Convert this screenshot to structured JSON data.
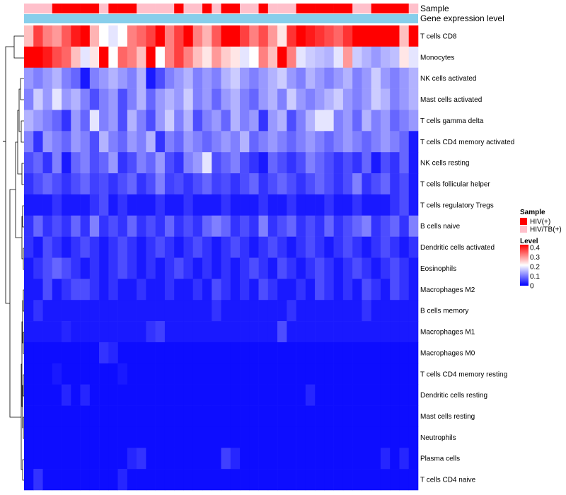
{
  "chart_data": {
    "type": "heatmap",
    "annotation_rows": [
      "Sample",
      "Gene expression level"
    ],
    "rows": [
      "T cells CD8",
      "Monocytes",
      "NK cells activated",
      "Mast cells activated",
      "T cells gamma delta",
      "T cells CD4 memory activated",
      "NK cells resting",
      "T cells follicular helper",
      "T cells regulatory  Tregs",
      "B cells naive",
      "Dendritic cells activated",
      "Eosinophils",
      "Macrophages M2",
      "B cells memory",
      "Macrophages M1",
      "Macrophages M0",
      "T cells CD4 memory resting",
      "Dendritic cells resting",
      "Mast cells resting",
      "Neutrophils",
      "Plasma cells",
      "T cells CD4 naive"
    ],
    "sample_groups": [
      "HIV/TB(+)",
      "HIV/TB(+)",
      "HIV/TB(+)",
      "HIV(+)",
      "HIV(+)",
      "HIV(+)",
      "HIV(+)",
      "HIV(+)",
      "HIV/TB(+)",
      "HIV(+)",
      "HIV(+)",
      "HIV(+)",
      "HIV/TB(+)",
      "HIV/TB(+)",
      "HIV/TB(+)",
      "HIV/TB(+)",
      "HIV(+)",
      "HIV/TB(+)",
      "HIV/TB(+)",
      "HIV(+)",
      "HIV/TB(+)",
      "HIV(+)",
      "HIV(+)",
      "HIV/TB(+)",
      "HIV/TB(+)",
      "HIV(+)",
      "HIV/TB(+)",
      "HIV/TB(+)",
      "HIV/TB(+)",
      "HIV(+)",
      "HIV(+)",
      "HIV(+)",
      "HIV(+)",
      "HIV(+)",
      "HIV(+)",
      "HIV/TB(+)",
      "HIV/TB(+)",
      "HIV(+)",
      "HIV(+)",
      "HIV(+)",
      "HIV(+)",
      "HIV/TB(+)"
    ],
    "values": [
      [
        0.25,
        0.35,
        0.3,
        0.28,
        0.33,
        0.38,
        0.4,
        0.26,
        0.2,
        0.18,
        0.2,
        0.3,
        0.32,
        0.35,
        0.4,
        0.3,
        0.35,
        0.42,
        0.3,
        0.26,
        0.33,
        0.4,
        0.42,
        0.35,
        0.3,
        0.34,
        0.28,
        0.22,
        0.36,
        0.42,
        0.38,
        0.36,
        0.34,
        0.32,
        0.36,
        0.42,
        0.45,
        0.45,
        0.45,
        0.45,
        0.25,
        0.45
      ],
      [
        0.42,
        0.45,
        0.38,
        0.34,
        0.32,
        0.25,
        0.18,
        0.22,
        0.4,
        0.2,
        0.32,
        0.3,
        0.25,
        0.4,
        0.2,
        0.3,
        0.35,
        0.3,
        0.25,
        0.22,
        0.28,
        0.24,
        0.22,
        0.18,
        0.2,
        0.3,
        0.25,
        0.4,
        0.3,
        0.18,
        0.16,
        0.15,
        0.14,
        0.18,
        0.28,
        0.16,
        0.14,
        0.12,
        0.14,
        0.15,
        0.22,
        0.18
      ],
      [
        0.12,
        0.1,
        0.12,
        0.14,
        0.1,
        0.08,
        0.02,
        0.1,
        0.12,
        0.14,
        0.12,
        0.1,
        0.14,
        0.02,
        0.06,
        0.1,
        0.12,
        0.14,
        0.1,
        0.12,
        0.1,
        0.14,
        0.16,
        0.12,
        0.1,
        0.12,
        0.14,
        0.16,
        0.12,
        0.1,
        0.14,
        0.12,
        0.1,
        0.12,
        0.14,
        0.1,
        0.12,
        0.16,
        0.12,
        0.1,
        0.12,
        0.14
      ],
      [
        0.1,
        0.16,
        0.12,
        0.18,
        0.12,
        0.14,
        0.1,
        0.06,
        0.1,
        0.12,
        0.06,
        0.1,
        0.14,
        0.08,
        0.12,
        0.14,
        0.12,
        0.16,
        0.1,
        0.12,
        0.08,
        0.12,
        0.14,
        0.1,
        0.08,
        0.12,
        0.14,
        0.1,
        0.16,
        0.12,
        0.1,
        0.12,
        0.14,
        0.16,
        0.12,
        0.1,
        0.12,
        0.16,
        0.14,
        0.1,
        0.12,
        0.14
      ],
      [
        0.14,
        0.12,
        0.1,
        0.08,
        0.04,
        0.12,
        0.08,
        0.18,
        0.1,
        0.12,
        0.06,
        0.14,
        0.1,
        0.06,
        0.12,
        0.16,
        0.1,
        0.14,
        0.06,
        0.1,
        0.12,
        0.08,
        0.14,
        0.1,
        0.12,
        0.04,
        0.12,
        0.14,
        0.06,
        0.1,
        0.14,
        0.18,
        0.18,
        0.1,
        0.12,
        0.08,
        0.14,
        0.1,
        0.12,
        0.08,
        0.1,
        0.12
      ],
      [
        0.1,
        0.04,
        0.12,
        0.1,
        0.08,
        0.12,
        0.1,
        0.06,
        0.14,
        0.1,
        0.08,
        0.12,
        0.1,
        0.14,
        0.04,
        0.1,
        0.08,
        0.12,
        0.1,
        0.08,
        0.1,
        0.12,
        0.1,
        0.14,
        0.08,
        0.1,
        0.12,
        0.1,
        0.08,
        0.1,
        0.12,
        0.1,
        0.08,
        0.1,
        0.12,
        0.1,
        0.08,
        0.1,
        0.12,
        0.1,
        0.08,
        0.02
      ],
      [
        0.06,
        0.08,
        0.04,
        0.1,
        0.02,
        0.08,
        0.1,
        0.06,
        0.08,
        0.12,
        0.04,
        0.06,
        0.1,
        0.08,
        0.12,
        0.06,
        0.04,
        0.1,
        0.12,
        0.18,
        0.06,
        0.08,
        0.1,
        0.06,
        0.04,
        0.02,
        0.08,
        0.06,
        0.04,
        0.06,
        0.1,
        0.08,
        0.06,
        0.04,
        0.06,
        0.04,
        0.08,
        0.02,
        0.06,
        0.04,
        0.08,
        0.02
      ],
      [
        0.04,
        0.06,
        0.08,
        0.06,
        0.04,
        0.06,
        0.08,
        0.05,
        0.06,
        0.04,
        0.06,
        0.08,
        0.04,
        0.06,
        0.1,
        0.05,
        0.06,
        0.04,
        0.06,
        0.08,
        0.05,
        0.06,
        0.04,
        0.06,
        0.08,
        0.04,
        0.06,
        0.08,
        0.06,
        0.04,
        0.06,
        0.08,
        0.06,
        0.04,
        0.06,
        0.1,
        0.04,
        0.06,
        0.08,
        0.04,
        0.06,
        0.02
      ],
      [
        0.02,
        0.02,
        0.02,
        0.04,
        0.02,
        0.02,
        0.02,
        0.04,
        0.06,
        0.02,
        0.04,
        0.02,
        0.02,
        0.02,
        0.04,
        0.02,
        0.02,
        0.04,
        0.02,
        0.02,
        0.02,
        0.04,
        0.02,
        0.02,
        0.02,
        0.04,
        0.02,
        0.02,
        0.04,
        0.02,
        0.02,
        0.02,
        0.04,
        0.02,
        0.02,
        0.04,
        0.02,
        0.02,
        0.02,
        0.04,
        0.06,
        0.02
      ],
      [
        0.04,
        0.08,
        0.04,
        0.06,
        0.04,
        0.08,
        0.04,
        0.1,
        0.04,
        0.06,
        0.04,
        0.08,
        0.04,
        0.06,
        0.04,
        0.08,
        0.04,
        0.06,
        0.04,
        0.08,
        0.1,
        0.08,
        0.04,
        0.06,
        0.04,
        0.1,
        0.04,
        0.06,
        0.08,
        0.04,
        0.06,
        0.04,
        0.08,
        0.04,
        0.06,
        0.08,
        0.1,
        0.04,
        0.06,
        0.08,
        0.04,
        0.1
      ],
      [
        0.04,
        0.02,
        0.06,
        0.04,
        0.02,
        0.04,
        0.06,
        0.04,
        0.02,
        0.04,
        0.06,
        0.04,
        0.02,
        0.04,
        0.06,
        0.04,
        0.02,
        0.04,
        0.06,
        0.04,
        0.02,
        0.04,
        0.06,
        0.04,
        0.02,
        0.04,
        0.06,
        0.04,
        0.02,
        0.04,
        0.06,
        0.04,
        0.02,
        0.04,
        0.06,
        0.04,
        0.02,
        0.04,
        0.06,
        0.04,
        0.02,
        0.04
      ],
      [
        0.02,
        0.04,
        0.06,
        0.08,
        0.06,
        0.04,
        0.02,
        0.04,
        0.02,
        0.04,
        0.06,
        0.04,
        0.02,
        0.04,
        0.02,
        0.04,
        0.06,
        0.04,
        0.02,
        0.04,
        0.02,
        0.04,
        0.02,
        0.04,
        0.06,
        0.04,
        0.02,
        0.06,
        0.04,
        0.02,
        0.04,
        0.06,
        0.04,
        0.02,
        0.04,
        0.06,
        0.04,
        0.02,
        0.04,
        0.06,
        0.04,
        0.02
      ],
      [
        0.02,
        0.02,
        0.06,
        0.02,
        0.04,
        0.06,
        0.06,
        0.04,
        0.02,
        0.04,
        0.02,
        0.02,
        0.04,
        0.02,
        0.02,
        0.04,
        0.02,
        0.02,
        0.04,
        0.02,
        0.06,
        0.04,
        0.02,
        0.04,
        0.02,
        0.06,
        0.04,
        0.02,
        0.02,
        0.04,
        0.02,
        0.06,
        0.04,
        0.02,
        0.04,
        0.02,
        0.06,
        0.04,
        0.02,
        0.06,
        0.04,
        0.02
      ],
      [
        0.02,
        0.04,
        0.02,
        0.02,
        0.02,
        0.02,
        0.02,
        0.02,
        0.02,
        0.02,
        0.02,
        0.02,
        0.02,
        0.02,
        0.02,
        0.02,
        0.02,
        0.02,
        0.02,
        0.02,
        0.04,
        0.02,
        0.02,
        0.02,
        0.02,
        0.02,
        0.02,
        0.02,
        0.04,
        0.02,
        0.02,
        0.02,
        0.02,
        0.02,
        0.02,
        0.02,
        0.04,
        0.02,
        0.02,
        0.02,
        0.02,
        0.02
      ],
      [
        0.02,
        0.02,
        0.02,
        0.02,
        0.03,
        0.02,
        0.02,
        0.02,
        0.02,
        0.02,
        0.02,
        0.02,
        0.02,
        0.04,
        0.05,
        0.02,
        0.02,
        0.02,
        0.02,
        0.02,
        0.02,
        0.02,
        0.02,
        0.02,
        0.02,
        0.02,
        0.02,
        0.06,
        0.02,
        0.02,
        0.02,
        0.02,
        0.02,
        0.02,
        0.02,
        0.02,
        0.02,
        0.02,
        0.02,
        0.02,
        0.02,
        0.02
      ],
      [
        0.01,
        0.01,
        0.01,
        0.01,
        0.01,
        0.01,
        0.01,
        0.01,
        0.04,
        0.03,
        0.01,
        0.01,
        0.01,
        0.01,
        0.01,
        0.01,
        0.01,
        0.01,
        0.01,
        0.01,
        0.01,
        0.01,
        0.01,
        0.01,
        0.01,
        0.01,
        0.01,
        0.01,
        0.01,
        0.01,
        0.01,
        0.01,
        0.01,
        0.01,
        0.01,
        0.01,
        0.01,
        0.01,
        0.01,
        0.01,
        0.01,
        0.01
      ],
      [
        0.01,
        0.01,
        0.01,
        0.02,
        0.01,
        0.01,
        0.01,
        0.01,
        0.01,
        0.01,
        0.02,
        0.01,
        0.01,
        0.01,
        0.01,
        0.01,
        0.01,
        0.01,
        0.01,
        0.01,
        0.01,
        0.01,
        0.01,
        0.01,
        0.01,
        0.01,
        0.01,
        0.01,
        0.01,
        0.01,
        0.01,
        0.01,
        0.01,
        0.01,
        0.01,
        0.01,
        0.01,
        0.01,
        0.01,
        0.01,
        0.01,
        0.01
      ],
      [
        0.01,
        0.01,
        0.01,
        0.01,
        0.03,
        0.01,
        0.03,
        0.01,
        0.01,
        0.01,
        0.01,
        0.01,
        0.01,
        0.01,
        0.01,
        0.01,
        0.01,
        0.01,
        0.01,
        0.01,
        0.01,
        0.01,
        0.01,
        0.01,
        0.01,
        0.01,
        0.01,
        0.01,
        0.01,
        0.01,
        0.03,
        0.01,
        0.01,
        0.01,
        0.01,
        0.01,
        0.01,
        0.01,
        0.01,
        0.01,
        0.01,
        0.01
      ],
      [
        0.01,
        0.01,
        0.01,
        0.01,
        0.01,
        0.01,
        0.01,
        0.01,
        0.01,
        0.01,
        0.01,
        0.01,
        0.01,
        0.01,
        0.01,
        0.01,
        0.01,
        0.01,
        0.01,
        0.01,
        0.01,
        0.01,
        0.01,
        0.01,
        0.01,
        0.01,
        0.01,
        0.01,
        0.01,
        0.01,
        0.01,
        0.01,
        0.01,
        0.01,
        0.01,
        0.01,
        0.01,
        0.01,
        0.01,
        0.01,
        0.01,
        0.01
      ],
      [
        0.01,
        0.01,
        0.01,
        0.01,
        0.01,
        0.01,
        0.01,
        0.01,
        0.01,
        0.01,
        0.01,
        0.01,
        0.01,
        0.01,
        0.01,
        0.01,
        0.01,
        0.01,
        0.01,
        0.01,
        0.01,
        0.01,
        0.01,
        0.01,
        0.01,
        0.01,
        0.01,
        0.01,
        0.01,
        0.01,
        0.01,
        0.01,
        0.01,
        0.01,
        0.01,
        0.01,
        0.01,
        0.01,
        0.01,
        0.01,
        0.01,
        0.01
      ],
      [
        0.01,
        0.01,
        0.01,
        0.01,
        0.01,
        0.01,
        0.01,
        0.01,
        0.01,
        0.01,
        0.01,
        0.03,
        0.04,
        0.01,
        0.01,
        0.01,
        0.01,
        0.01,
        0.01,
        0.01,
        0.01,
        0.05,
        0.03,
        0.01,
        0.01,
        0.01,
        0.01,
        0.01,
        0.01,
        0.01,
        0.01,
        0.01,
        0.01,
        0.01,
        0.01,
        0.01,
        0.01,
        0.01,
        0.03,
        0.01,
        0.03,
        0.01
      ],
      [
        0.01,
        0.04,
        0.01,
        0.01,
        0.01,
        0.01,
        0.01,
        0.01,
        0.01,
        0.01,
        0.03,
        0.01,
        0.01,
        0.01,
        0.01,
        0.01,
        0.01,
        0.01,
        0.01,
        0.01,
        0.01,
        0.01,
        0.01,
        0.01,
        0.01,
        0.01,
        0.01,
        0.01,
        0.01,
        0.01,
        0.01,
        0.01,
        0.01,
        0.01,
        0.01,
        0.01,
        0.01,
        0.01,
        0.01,
        0.01,
        0.01,
        0.01
      ]
    ],
    "color_scale": {
      "min": 0,
      "mid": 0.2,
      "max": 0.4,
      "low_color": "#0000FF",
      "mid_color": "#FFFFFF",
      "high_color": "#FF0000"
    },
    "annotation_colors": {
      "HIV(+)": "#FF0000",
      "HIV/TB(+)": "#FFC0CB",
      "gene_expression_bar": "#87CEEB"
    },
    "legend": {
      "sample_title": "Sample",
      "sample_entries": [
        "HIV(+)",
        "HIV/TB(+)"
      ],
      "level_title": "Level",
      "level_ticks": [
        "0.4",
        "0.3",
        "0.2",
        "0.1",
        "0"
      ]
    }
  }
}
